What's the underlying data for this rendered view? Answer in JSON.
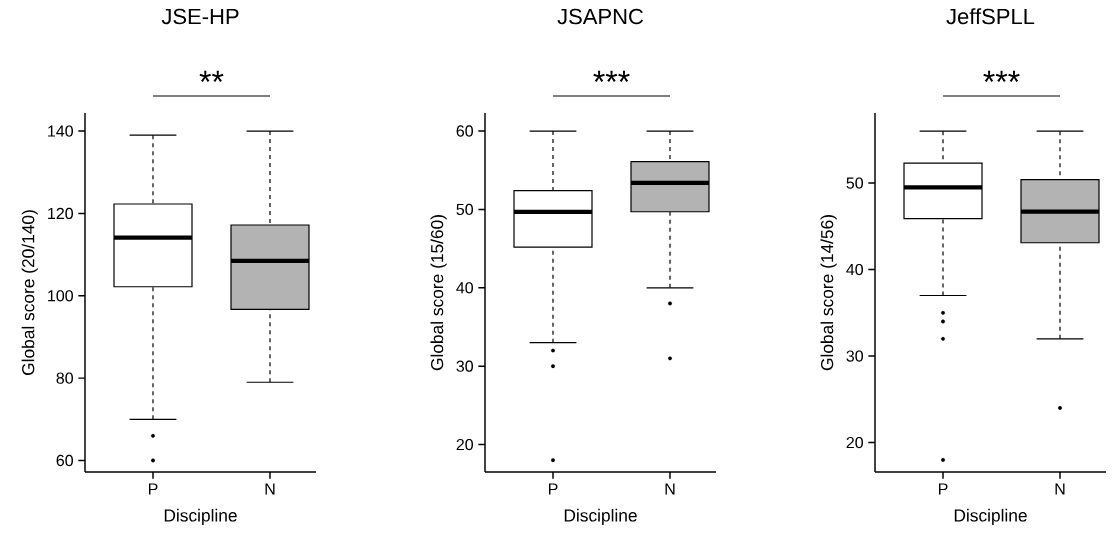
{
  "chart_data": [
    {
      "type": "box",
      "title": "JSE-HP",
      "xlabel": "Discipline",
      "ylabel": "Global score (20/140)",
      "categories": [
        "P",
        "N"
      ],
      "colors": [
        "#ffffff",
        "#b3b3b3"
      ],
      "boxes": [
        {
          "low": 70,
          "q1": 102.2,
          "median": 114.1,
          "q3": 122.3,
          "high": 139,
          "outliers": [
            66,
            60
          ]
        },
        {
          "low": 79,
          "q1": 96.7,
          "median": 108.5,
          "q3": 117.2,
          "high": 140
        }
      ],
      "ylim": [
        57.2,
        144.4
      ],
      "yticks": [
        60,
        80,
        100,
        120,
        140
      ],
      "annotations": [
        "**"
      ]
    },
    {
      "type": "box",
      "title": "JSAPNC",
      "xlabel": "Discipline",
      "ylabel": "Global score (15/60)",
      "categories": [
        "P",
        "N"
      ],
      "colors": [
        "#ffffff",
        "#b3b3b3"
      ],
      "boxes": [
        {
          "low": 33,
          "q1": 45.2,
          "median": 49.7,
          "q3": 52.4,
          "high": 60,
          "outliers": [
            32,
            30,
            18
          ]
        },
        {
          "low": 40,
          "q1": 49.7,
          "median": 53.4,
          "q3": 56.1,
          "high": 60,
          "outliers": [
            38,
            31
          ]
        }
      ],
      "ylim": [
        16.5,
        62.3
      ],
      "yticks": [
        20,
        30,
        40,
        50,
        60
      ],
      "annotations": [
        "***"
      ]
    },
    {
      "type": "box",
      "title": "JeffSPLL",
      "xlabel": "Discipline",
      "ylabel": "Global score (14/56)",
      "categories": [
        "P",
        "N"
      ],
      "colors": [
        "#ffffff",
        "#b3b3b3"
      ],
      "boxes": [
        {
          "low": 37,
          "q1": 45.9,
          "median": 49.5,
          "q3": 52.3,
          "high": 56,
          "outliers": [
            35,
            34,
            32,
            18
          ]
        },
        {
          "low": 32,
          "q1": 43.1,
          "median": 46.7,
          "q3": 50.4,
          "high": 56,
          "outliers": [
            24
          ]
        }
      ],
      "ylim": [
        16.6,
        58.1
      ],
      "yticks": [
        20,
        30,
        40,
        50
      ],
      "annotations": [
        "***"
      ]
    }
  ]
}
